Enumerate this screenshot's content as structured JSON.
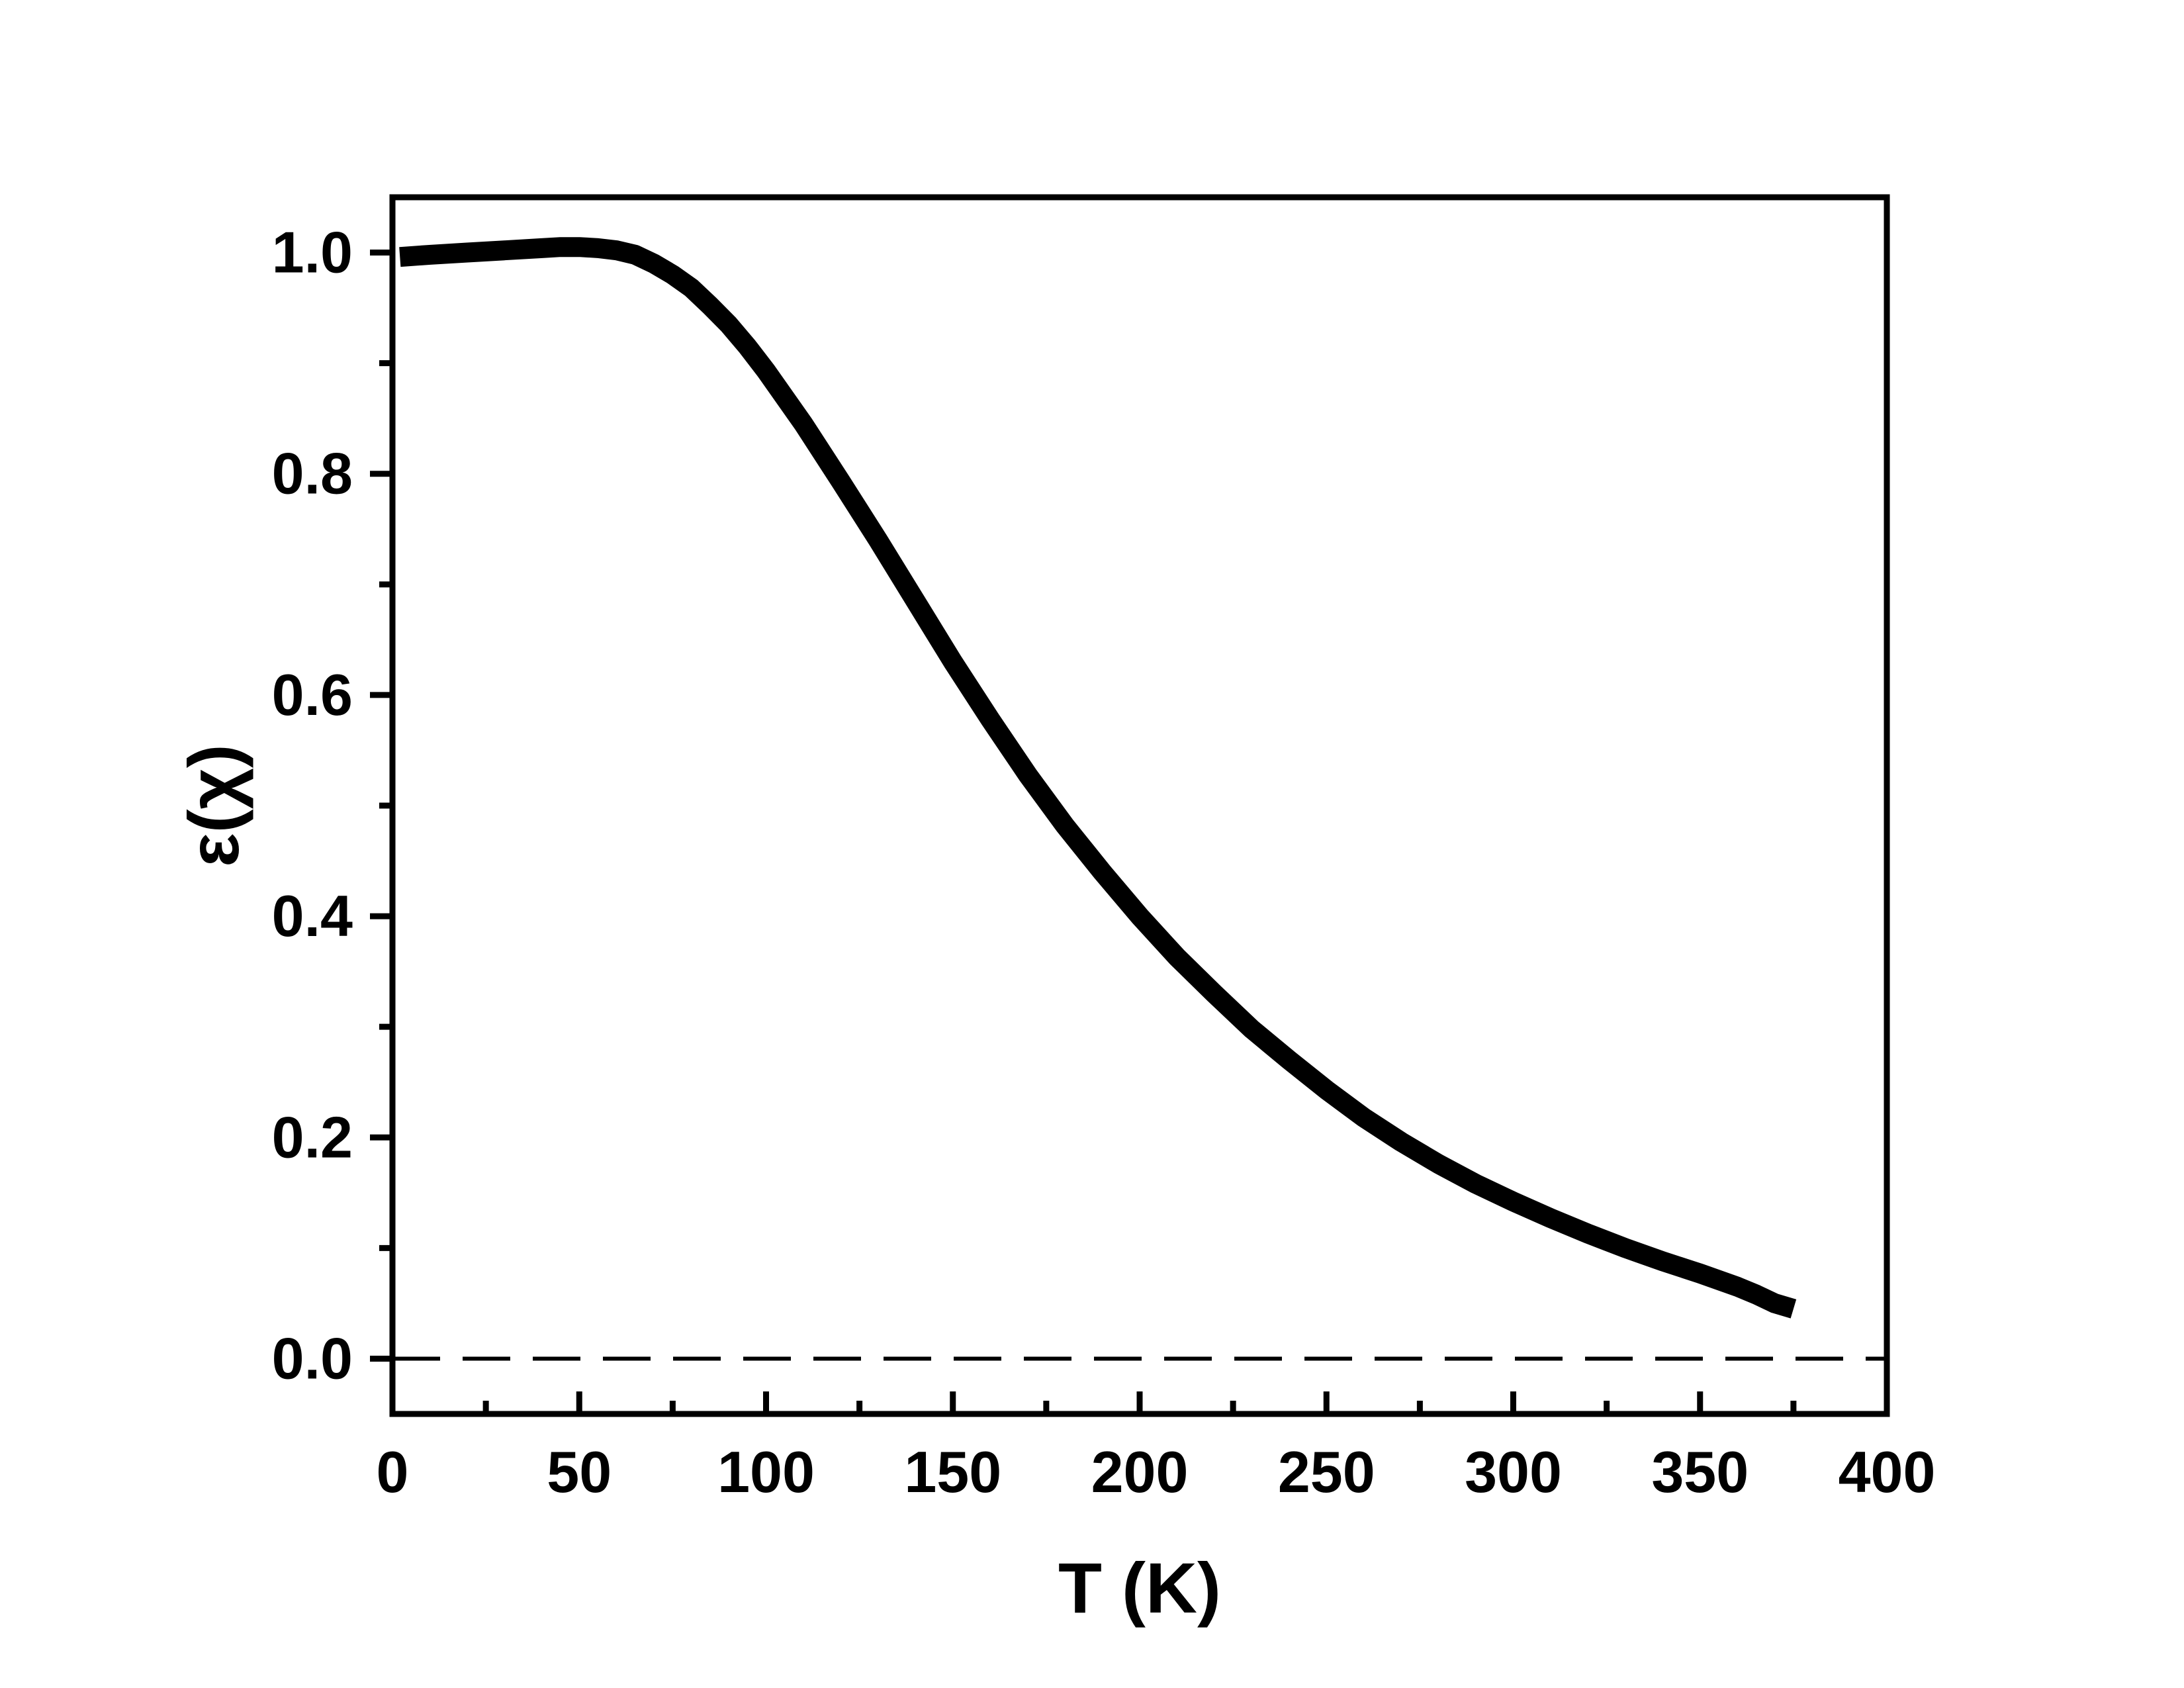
{
  "chart_data": {
    "type": "line",
    "title": "",
    "xlabel": "T (K)",
    "ylabel": "ε(χ)",
    "xlim": [
      0,
      400
    ],
    "ylim": [
      -0.05,
      1.05
    ],
    "xticks": [
      0,
      50,
      100,
      150,
      200,
      250,
      300,
      350,
      400
    ],
    "yticks": [
      0.0,
      0.2,
      0.4,
      0.6,
      0.8,
      1.0
    ],
    "x_tick_labels": [
      "0",
      "50",
      "100",
      "150",
      "200",
      "250",
      "300",
      "350",
      "400"
    ],
    "y_tick_labels": [
      "0.0",
      "0.2",
      "0.4",
      "0.6",
      "0.8",
      "1.0"
    ],
    "grid": false,
    "legend": "none",
    "line_color": "#000000",
    "series": [
      {
        "style": "thick-solid",
        "x": [
          2,
          10,
          20,
          30,
          40,
          45,
          50,
          55,
          60,
          65,
          70,
          75,
          80,
          85,
          90,
          95,
          100,
          110,
          120,
          130,
          140,
          150,
          160,
          170,
          180,
          190,
          200,
          210,
          220,
          230,
          240,
          250,
          260,
          270,
          280,
          290,
          300,
          310,
          320,
          330,
          340,
          350,
          360,
          365,
          370,
          375
        ],
        "y": [
          0.996,
          0.998,
          1.0,
          1.002,
          1.004,
          1.005,
          1.005,
          1.004,
          1.002,
          0.998,
          0.99,
          0.98,
          0.968,
          0.952,
          0.935,
          0.915,
          0.893,
          0.845,
          0.793,
          0.74,
          0.685,
          0.63,
          0.578,
          0.528,
          0.482,
          0.44,
          0.4,
          0.363,
          0.33,
          0.298,
          0.27,
          0.243,
          0.218,
          0.196,
          0.176,
          0.158,
          0.142,
          0.127,
          0.113,
          0.1,
          0.088,
          0.077,
          0.065,
          0.058,
          0.05,
          0.045
        ]
      },
      {
        "style": "dashed",
        "x": [
          0,
          400
        ],
        "y": [
          0,
          0
        ]
      }
    ]
  }
}
